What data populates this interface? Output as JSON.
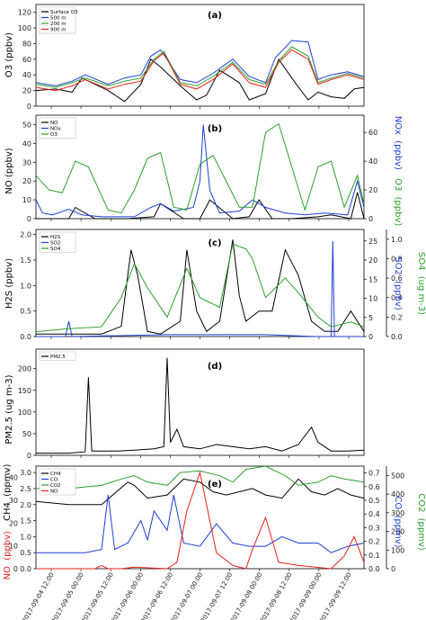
{
  "x_tick_labels": [
    "2017-09-04 12:00",
    "2017-09-05 00:00",
    "2017-09-05 12:00",
    "2017-09-06 00:00",
    "2017-09-06 12:00",
    "2017-09-07 00:00",
    "2017-09-07 12:00",
    "2017-09-08 00:00",
    "2017-09-08 12:00",
    "2017-09-09 00:00",
    "2017-09-09 12:00"
  ],
  "chart_data": [
    {
      "panel": "(a)",
      "type": "line",
      "ylabel": "O3 (ppbv)",
      "ylim": [
        0,
        130
      ],
      "yticks": [
        0,
        20,
        40,
        60,
        80,
        100,
        120
      ],
      "legend_position": "top-left",
      "series": [
        {
          "name": "Surface O3",
          "color": "#000000",
          "x": [
            0,
            0.06,
            0.11,
            0.14,
            0.22,
            0.27,
            0.32,
            0.35,
            0.38,
            0.44,
            0.49,
            0.52,
            0.56,
            0.62,
            0.65,
            0.7,
            0.74,
            0.79,
            0.83,
            0.86,
            0.9,
            0.94,
            0.97,
            1.0
          ],
          "y": [
            20,
            22,
            18,
            36,
            20,
            6,
            28,
            60,
            50,
            26,
            8,
            14,
            46,
            30,
            8,
            16,
            60,
            30,
            8,
            18,
            12,
            10,
            22,
            24
          ]
        },
        {
          "name": "500 m",
          "color": "#1f3fd8",
          "x": [
            0,
            0.06,
            0.11,
            0.15,
            0.22,
            0.27,
            0.32,
            0.35,
            0.38,
            0.44,
            0.49,
            0.54,
            0.6,
            0.65,
            0.7,
            0.73,
            0.78,
            0.83,
            0.86,
            0.9,
            0.95,
            1.0
          ],
          "y": [
            30,
            26,
            32,
            40,
            28,
            36,
            40,
            64,
            72,
            34,
            30,
            42,
            60,
            38,
            30,
            62,
            84,
            82,
            34,
            40,
            44,
            38
          ]
        },
        {
          "name": "200 m",
          "color": "#2ca02c",
          "x": [
            0,
            0.06,
            0.11,
            0.15,
            0.22,
            0.27,
            0.32,
            0.36,
            0.39,
            0.44,
            0.49,
            0.54,
            0.6,
            0.65,
            0.7,
            0.74,
            0.78,
            0.83,
            0.86,
            0.9,
            0.95,
            1.0
          ],
          "y": [
            28,
            24,
            30,
            36,
            26,
            32,
            36,
            60,
            70,
            30,
            26,
            38,
            56,
            34,
            28,
            58,
            76,
            64,
            30,
            36,
            42,
            36
          ]
        },
        {
          "name": "900 m",
          "color": "#e8201a",
          "x": [
            0,
            0.06,
            0.11,
            0.15,
            0.22,
            0.27,
            0.32,
            0.36,
            0.39,
            0.44,
            0.49,
            0.54,
            0.6,
            0.65,
            0.7,
            0.74,
            0.78,
            0.83,
            0.86,
            0.9,
            0.95,
            1.0
          ],
          "y": [
            24,
            20,
            26,
            34,
            22,
            28,
            32,
            58,
            68,
            28,
            22,
            34,
            54,
            30,
            24,
            56,
            72,
            60,
            28,
            34,
            40,
            34
          ]
        }
      ]
    },
    {
      "panel": "(b)",
      "type": "line",
      "ylabel": "NO (ppbv)",
      "ylim": [
        0,
        55
      ],
      "yticks": [
        0,
        10,
        20,
        30,
        40,
        50
      ],
      "y2label_parts": [
        "NOx",
        "(ppbv)",
        "O3",
        "(ppbv)"
      ],
      "y2lim": [
        0,
        72
      ],
      "y2ticks": [
        0,
        20,
        40,
        60
      ],
      "legend_position": "top-left",
      "series": [
        {
          "name": "NO",
          "color": "#000000",
          "axis": "left",
          "x": [
            0,
            0.1,
            0.12,
            0.18,
            0.28,
            0.36,
            0.38,
            0.45,
            0.5,
            0.53,
            0.6,
            0.65,
            0.68,
            0.72,
            0.78,
            0.86,
            0.9,
            0.96,
            0.98,
            1.0
          ],
          "y": [
            0,
            0,
            6,
            0,
            0,
            1,
            8,
            0,
            0,
            10,
            0,
            1,
            10,
            0,
            0,
            1,
            2,
            0,
            14,
            0
          ]
        },
        {
          "name": "NOx",
          "color": "#1f3fd8",
          "axis": "left",
          "x": [
            0,
            0.02,
            0.05,
            0.1,
            0.14,
            0.2,
            0.3,
            0.35,
            0.38,
            0.42,
            0.48,
            0.5,
            0.51,
            0.53,
            0.56,
            0.62,
            0.66,
            0.7,
            0.76,
            0.82,
            0.88,
            0.95,
            0.98,
            1.0
          ],
          "y": [
            10,
            3,
            2,
            5,
            2,
            1,
            1,
            6,
            8,
            4,
            6,
            20,
            50,
            15,
            3,
            4,
            10,
            6,
            3,
            2,
            3,
            2,
            20,
            6
          ]
        },
        {
          "name": "O3",
          "color": "#2ca02c",
          "axis": "right",
          "x": [
            0,
            0.04,
            0.08,
            0.12,
            0.16,
            0.22,
            0.26,
            0.3,
            0.34,
            0.38,
            0.42,
            0.46,
            0.5,
            0.54,
            0.58,
            0.62,
            0.66,
            0.7,
            0.74,
            0.78,
            0.82,
            0.86,
            0.9,
            0.94,
            0.98,
            1.0
          ],
          "y": [
            30,
            20,
            18,
            40,
            36,
            6,
            4,
            20,
            42,
            46,
            8,
            6,
            38,
            44,
            26,
            8,
            8,
            60,
            66,
            36,
            6,
            36,
            40,
            8,
            30,
            10
          ]
        }
      ]
    },
    {
      "panel": "(c)",
      "type": "line",
      "ylabel": "H2S (ppbv)",
      "ylim": [
        0,
        2.1
      ],
      "yticks": [
        0.0,
        0.5,
        1.0,
        1.5,
        2.0
      ],
      "y2label_parts": [
        "SO2",
        "(ppbv)",
        "SO4",
        "(ug m-3)"
      ],
      "y2lim": [
        0,
        28
      ],
      "y2ticks": [
        0,
        5,
        10,
        15,
        20,
        25
      ],
      "y3lim": [
        0,
        1.1
      ],
      "y3ticks": [
        0.0,
        0.2,
        0.4,
        0.6,
        0.8,
        1.0
      ],
      "legend_position": "top-left",
      "series": [
        {
          "name": "H2S",
          "color": "#000000",
          "axis": "left",
          "x": [
            0,
            0.1,
            0.2,
            0.26,
            0.29,
            0.31,
            0.34,
            0.38,
            0.44,
            0.46,
            0.49,
            0.52,
            0.56,
            0.6,
            0.62,
            0.64,
            0.68,
            0.72,
            0.76,
            0.8,
            0.84,
            0.88,
            0.92,
            0.96,
            1.0
          ],
          "y": [
            0.05,
            0.05,
            0.05,
            0.2,
            1.7,
            1.2,
            0.1,
            0.05,
            0.3,
            1.7,
            0.5,
            0.1,
            0.3,
            1.9,
            0.8,
            0.3,
            0.5,
            0.5,
            1.7,
            1.2,
            0.3,
            0.1,
            0.1,
            0.5,
            0.1
          ]
        },
        {
          "name": "SO2",
          "color": "#1f3fd8",
          "axis": "y2",
          "x": [
            0,
            0.09,
            0.1,
            0.11,
            0.4,
            0.5,
            0.6,
            0.7,
            0.85,
            0.9,
            0.905,
            0.91,
            1.0
          ],
          "y": [
            0,
            0,
            4,
            0,
            0.5,
            0.5,
            0.5,
            0.5,
            0,
            0,
            25,
            0,
            0
          ]
        },
        {
          "name": "SO4",
          "color": "#2ca02c",
          "axis": "y3",
          "x": [
            0,
            0.1,
            0.2,
            0.26,
            0.3,
            0.34,
            0.4,
            0.46,
            0.5,
            0.56,
            0.6,
            0.64,
            0.66,
            0.7,
            0.76,
            0.8,
            0.86,
            0.9,
            0.96,
            1.0
          ],
          "y": [
            0.05,
            0.08,
            0.1,
            0.4,
            0.75,
            0.5,
            0.2,
            0.7,
            0.4,
            0.3,
            0.95,
            0.9,
            0.8,
            0.4,
            0.6,
            0.45,
            0.2,
            0.1,
            0.15,
            0.1
          ]
        }
      ]
    },
    {
      "panel": "(d)",
      "type": "line",
      "ylabel": "PM2.5 (ug m-3)",
      "ylim": [
        0,
        245
      ],
      "yticks": [
        0,
        50,
        100,
        150,
        200
      ],
      "legend_position": "top-left",
      "series": [
        {
          "name": "PM2.5",
          "color": "#000000",
          "x": [
            0,
            0.1,
            0.15,
            0.16,
            0.17,
            0.25,
            0.3,
            0.36,
            0.39,
            0.4,
            0.41,
            0.43,
            0.45,
            0.5,
            0.55,
            0.6,
            0.65,
            0.7,
            0.75,
            0.8,
            0.84,
            0.86,
            0.9,
            0.95,
            1.0
          ],
          "y": [
            5,
            5,
            8,
            180,
            10,
            10,
            12,
            15,
            20,
            225,
            30,
            60,
            20,
            15,
            25,
            20,
            15,
            20,
            10,
            25,
            65,
            30,
            10,
            10,
            12
          ]
        }
      ]
    },
    {
      "panel": "(e)",
      "type": "line",
      "ylabel_parts": [
        "NO",
        "(ppbv)",
        "CH4",
        "(ppmv)"
      ],
      "ylim": [
        0,
        3.2
      ],
      "yticks": [
        0.0,
        0.5,
        1.0,
        1.5,
        2.0,
        2.5,
        3.0
      ],
      "no_ticks": [
        0,
        10,
        20,
        30,
        40
      ],
      "y2label_parts": [
        "CO",
        "(ppmv)",
        "CO2",
        "(ppmv)"
      ],
      "y2lim": [
        0,
        0.75
      ],
      "y2ticks": [
        0.0,
        0.1,
        0.2,
        0.3,
        0.4,
        0.5,
        0.6,
        0.7
      ],
      "co2_ticks": [
        0,
        100,
        200,
        300,
        400,
        500
      ],
      "legend_position": "top-left",
      "series": [
        {
          "name": "CH4",
          "color": "#000000",
          "axis": "left",
          "x": [
            0,
            0.1,
            0.2,
            0.28,
            0.3,
            0.34,
            0.4,
            0.45,
            0.5,
            0.54,
            0.58,
            0.62,
            0.66,
            0.7,
            0.75,
            0.8,
            0.84,
            0.88,
            0.92,
            0.96,
            1.0
          ],
          "y": [
            2.1,
            2.0,
            2.0,
            2.7,
            2.6,
            2.2,
            2.3,
            2.8,
            2.7,
            2.4,
            2.3,
            2.4,
            2.5,
            2.3,
            2.2,
            2.8,
            2.4,
            2.3,
            2.5,
            2.3,
            2.2
          ]
        },
        {
          "name": "CO",
          "color": "#1f3fd8",
          "axis": "left",
          "x": [
            0,
            0.1,
            0.15,
            0.2,
            0.22,
            0.24,
            0.28,
            0.32,
            0.34,
            0.36,
            0.4,
            0.42,
            0.45,
            0.5,
            0.55,
            0.6,
            0.65,
            0.7,
            0.75,
            0.8,
            0.86,
            0.9,
            0.95,
            1.0
          ],
          "y": [
            0.5,
            0.5,
            0.5,
            0.6,
            2.3,
            0.6,
            0.8,
            1.5,
            0.9,
            1.8,
            1.2,
            2.3,
            0.8,
            0.7,
            1.4,
            0.8,
            0.7,
            0.7,
            1.0,
            0.8,
            0.8,
            0.5,
            0.7,
            0.8
          ]
        },
        {
          "name": "CO2",
          "color": "#2ca02c",
          "axis": "left",
          "x": [
            0,
            0.1,
            0.2,
            0.26,
            0.3,
            0.34,
            0.4,
            0.44,
            0.5,
            0.56,
            0.6,
            0.64,
            0.7,
            0.76,
            0.8,
            0.86,
            0.9,
            0.94,
            1.0
          ],
          "y": [
            2.5,
            2.5,
            2.6,
            2.8,
            2.9,
            2.7,
            2.6,
            3.0,
            3.05,
            2.9,
            2.7,
            3.1,
            3.2,
            2.9,
            2.6,
            2.7,
            2.9,
            2.8,
            2.7
          ]
        },
        {
          "name": "NO",
          "color": "#e8201a",
          "axis": "left",
          "x": [
            0,
            0.18,
            0.2,
            0.22,
            0.26,
            0.3,
            0.4,
            0.43,
            0.46,
            0.5,
            0.55,
            0.6,
            0.64,
            0.66,
            0.7,
            0.74,
            0.8,
            0.9,
            0.94,
            0.97,
            1.0
          ],
          "y": [
            0,
            0,
            0.1,
            0.0,
            0,
            0.05,
            0,
            0.2,
            1.8,
            3.0,
            0.5,
            0.1,
            0,
            0.6,
            1.6,
            0.2,
            0.1,
            0,
            0.4,
            1.0,
            0.2
          ]
        }
      ]
    }
  ]
}
